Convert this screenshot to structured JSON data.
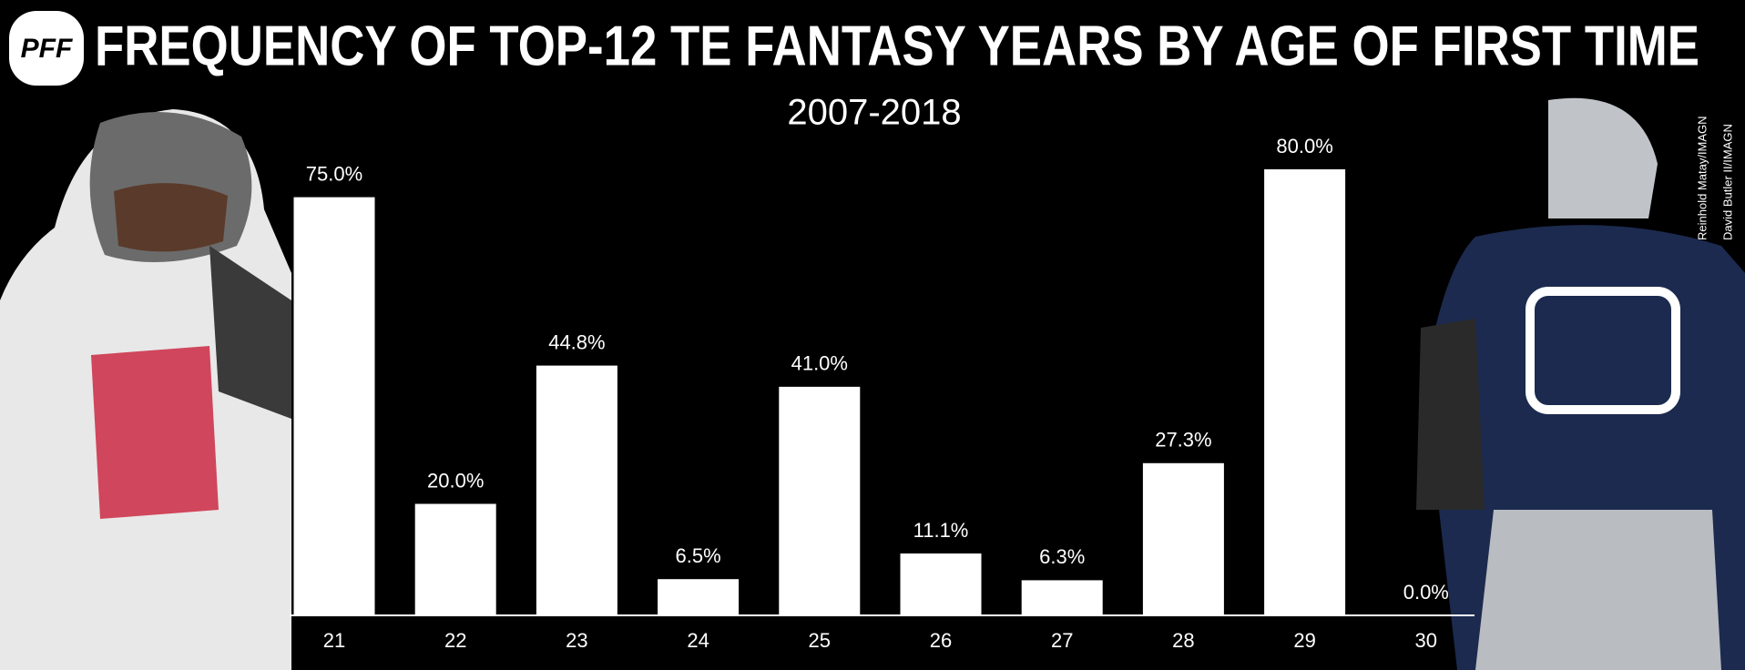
{
  "logo": "PFF",
  "credits": [
    "Reinhold Matay/IMAGN",
    "David Butler II/IMAGN"
  ],
  "chart_data": {
    "type": "bar",
    "title": "FREQUENCY OF TOP-12 TE FANTASY YEARS BY AGE OF FIRST TIME",
    "subtitle": "2007-2018",
    "categories": [
      "21",
      "22",
      "23",
      "24",
      "25",
      "26",
      "27",
      "28",
      "29",
      "30"
    ],
    "values": [
      75.0,
      20.0,
      44.8,
      6.5,
      41.0,
      11.1,
      6.3,
      27.3,
      80.0,
      0.0
    ],
    "value_labels": [
      "75.0%",
      "20.0%",
      "44.8%",
      "6.5%",
      "41.0%",
      "11.1%",
      "6.3%",
      "27.3%",
      "80.0%",
      "0.0%"
    ],
    "color": "#ffffff"
  }
}
